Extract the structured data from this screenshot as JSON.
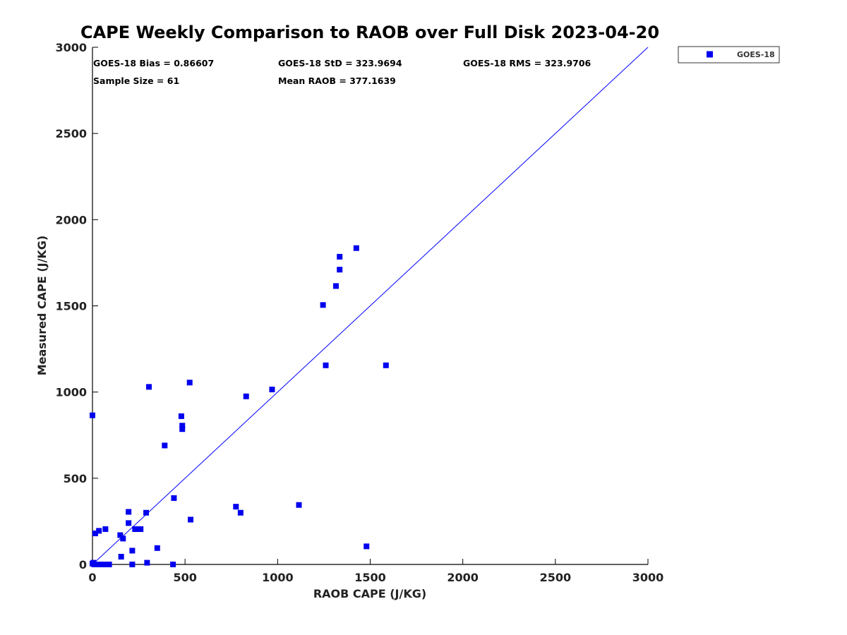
{
  "chart_data": {
    "type": "scatter",
    "title": "CAPE Weekly Comparison to RAOB over Full Disk 2023-04-20",
    "xlabel": "RAOB CAPE (J/KG)",
    "ylabel": "Measured CAPE (J/KG)",
    "xlim": [
      0,
      3000
    ],
    "ylim": [
      0,
      3000
    ],
    "xticks": [
      "0",
      "500",
      "1000",
      "1500",
      "2000",
      "2500",
      "3000"
    ],
    "yticks": [
      "0",
      "500",
      "1000",
      "1500",
      "2000",
      "2500",
      "3000"
    ],
    "grid": false,
    "legend_position": "outside-top-right",
    "reference_line": {
      "x": [
        0,
        3000
      ],
      "y": [
        0,
        3000
      ],
      "color": "#0000ff"
    },
    "stats": {
      "bias": "GOES-18 Bias = 0.86607",
      "std": "GOES-18 StD = 323.9694",
      "rms": "GOES-18 RMS = 323.9706",
      "sample_size": "Sample Size = 61",
      "mean_raob": "Mean RAOB = 377.1639"
    },
    "series": [
      {
        "name": "GOES-18",
        "color": "#0000ee",
        "marker": "square",
        "points": [
          {
            "x": 0,
            "y": 865
          },
          {
            "x": 0,
            "y": 5
          },
          {
            "x": 5,
            "y": 10
          },
          {
            "x": 10,
            "y": 0
          },
          {
            "x": 15,
            "y": 180
          },
          {
            "x": 20,
            "y": 0
          },
          {
            "x": 30,
            "y": 0
          },
          {
            "x": 35,
            "y": 195
          },
          {
            "x": 45,
            "y": 0
          },
          {
            "x": 55,
            "y": 0
          },
          {
            "x": 65,
            "y": 0
          },
          {
            "x": 70,
            "y": 205
          },
          {
            "x": 80,
            "y": 0
          },
          {
            "x": 90,
            "y": 0
          },
          {
            "x": 150,
            "y": 170
          },
          {
            "x": 155,
            "y": 45
          },
          {
            "x": 165,
            "y": 150
          },
          {
            "x": 195,
            "y": 305
          },
          {
            "x": 195,
            "y": 240
          },
          {
            "x": 215,
            "y": 80
          },
          {
            "x": 215,
            "y": 0
          },
          {
            "x": 230,
            "y": 205
          },
          {
            "x": 240,
            "y": 205
          },
          {
            "x": 260,
            "y": 205
          },
          {
            "x": 290,
            "y": 300
          },
          {
            "x": 295,
            "y": 10
          },
          {
            "x": 305,
            "y": 1030
          },
          {
            "x": 350,
            "y": 95
          },
          {
            "x": 390,
            "y": 690
          },
          {
            "x": 435,
            "y": 0
          },
          {
            "x": 440,
            "y": 385
          },
          {
            "x": 480,
            "y": 860
          },
          {
            "x": 485,
            "y": 805
          },
          {
            "x": 485,
            "y": 785
          },
          {
            "x": 525,
            "y": 1055
          },
          {
            "x": 530,
            "y": 260
          },
          {
            "x": 775,
            "y": 335
          },
          {
            "x": 800,
            "y": 300
          },
          {
            "x": 830,
            "y": 975
          },
          {
            "x": 970,
            "y": 1015
          },
          {
            "x": 1115,
            "y": 345
          },
          {
            "x": 1245,
            "y": 1505
          },
          {
            "x": 1260,
            "y": 1155
          },
          {
            "x": 1315,
            "y": 1615
          },
          {
            "x": 1335,
            "y": 1785
          },
          {
            "x": 1335,
            "y": 1710
          },
          {
            "x": 1425,
            "y": 1835
          },
          {
            "x": 1480,
            "y": 105
          },
          {
            "x": 1585,
            "y": 1155
          }
        ]
      }
    ]
  }
}
